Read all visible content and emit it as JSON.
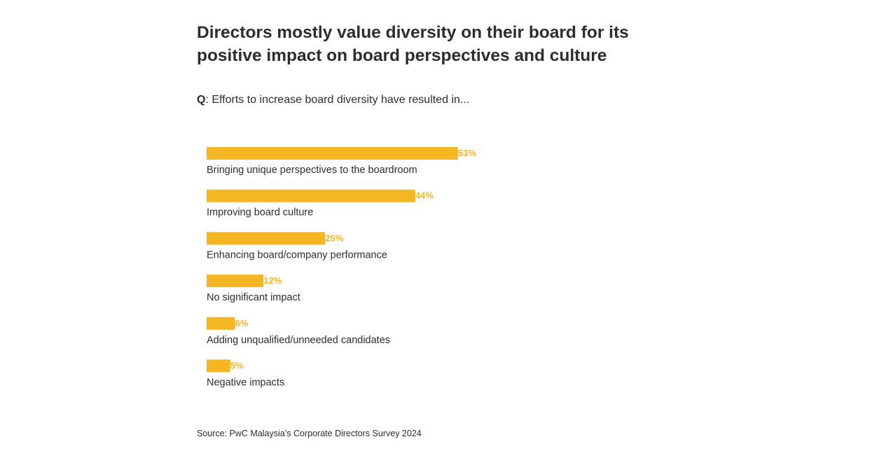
{
  "header": {
    "title": "Directors mostly value diversity on their board for its positive impact on board perspectives and culture",
    "question_prefix": "Q",
    "question_text": ": Efforts to increase board diversity have resulted in..."
  },
  "footer": {
    "source": "Source: PwC Malaysia’s Corporate Directors Survey 2024"
  },
  "colors": {
    "bar": "#f5b623",
    "text": "#2d2d2d"
  },
  "chart_data": {
    "type": "bar",
    "orientation": "horizontal",
    "title": "",
    "xlabel": "",
    "ylabel": "",
    "unit": "%",
    "xlim": [
      0,
      100
    ],
    "grid": false,
    "legend": "none",
    "categories": [
      "Bringing unique perspectives to the boardroom",
      "Improving board culture",
      "Enhancing board/company performance",
      "No significant impact",
      "Adding unqualified/unneeded candidates",
      "Negative impacts"
    ],
    "values": [
      53,
      44,
      25,
      12,
      6,
      5
    ],
    "value_labels": [
      "53%",
      "44%",
      "25%",
      "12%",
      "6%",
      "5%"
    ]
  }
}
